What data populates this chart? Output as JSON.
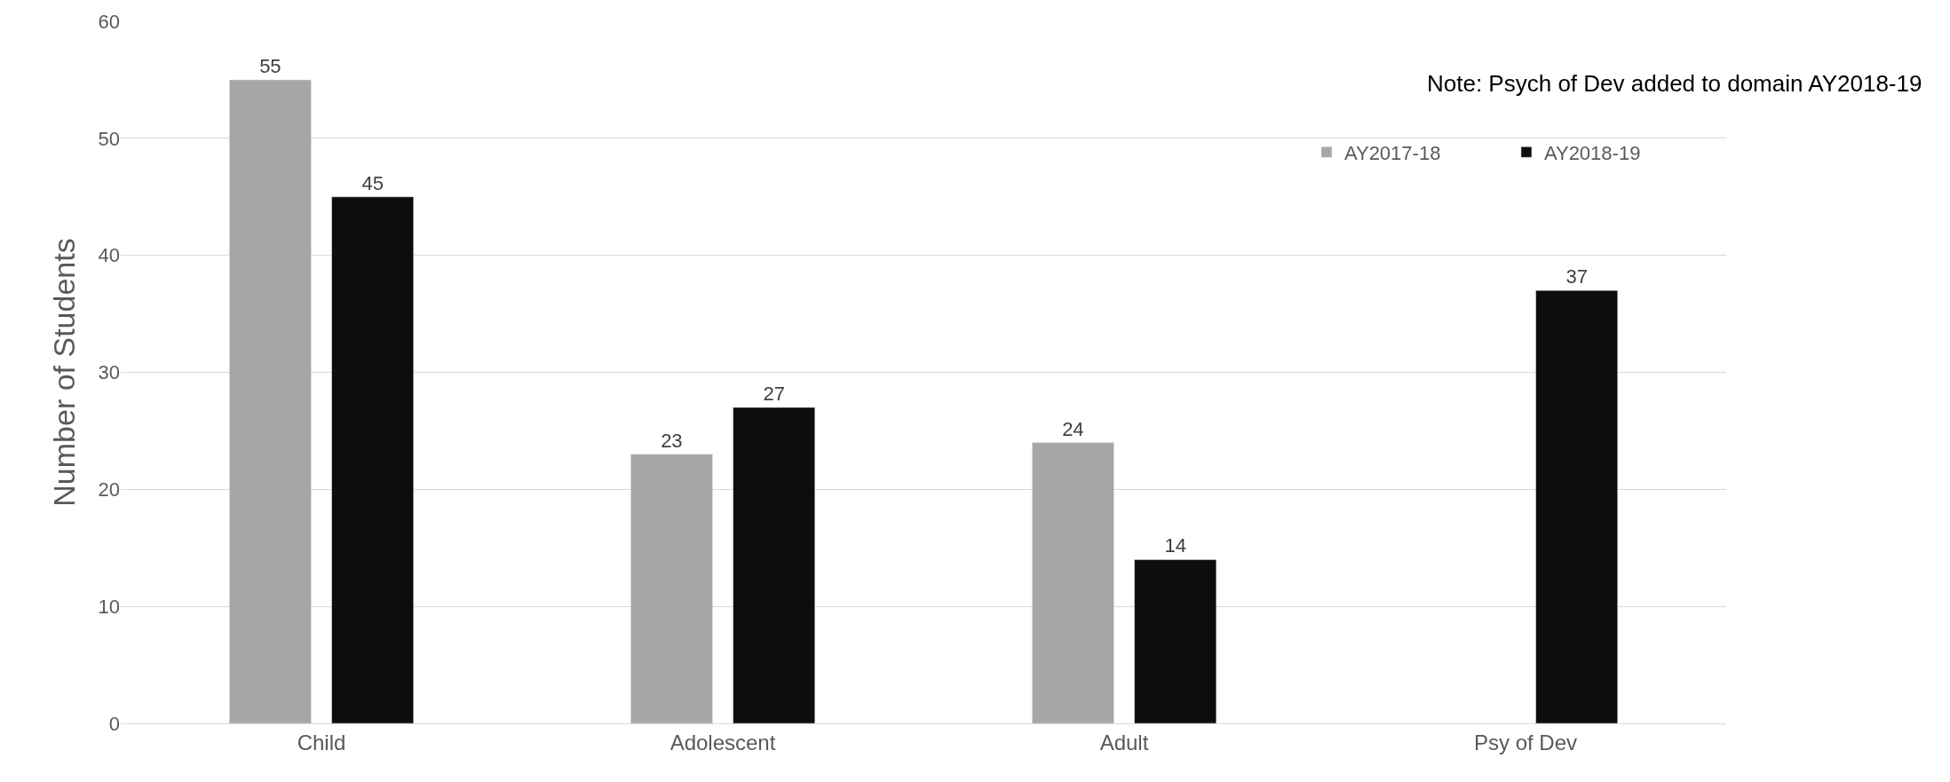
{
  "chart_data": {
    "type": "bar",
    "ylabel": "Number of Students",
    "categories": [
      "Child",
      "Adolescent",
      "Adult",
      "Psy of Dev"
    ],
    "series": [
      {
        "name": "AY2017-18",
        "color": "#a6a6a6",
        "values": [
          55,
          23,
          24,
          null
        ]
      },
      {
        "name": "AY2018-19",
        "color": "#0d0d0d",
        "values": [
          45,
          27,
          14,
          37
        ]
      }
    ],
    "ylim": [
      0,
      60
    ],
    "yticks": [
      0,
      10,
      20,
      30,
      40,
      50,
      60
    ],
    "grid": "y",
    "legend": "top right",
    "data_labels": true,
    "annotations": [
      "Note: Psych of Dev added to domain AY2018-19"
    ]
  }
}
